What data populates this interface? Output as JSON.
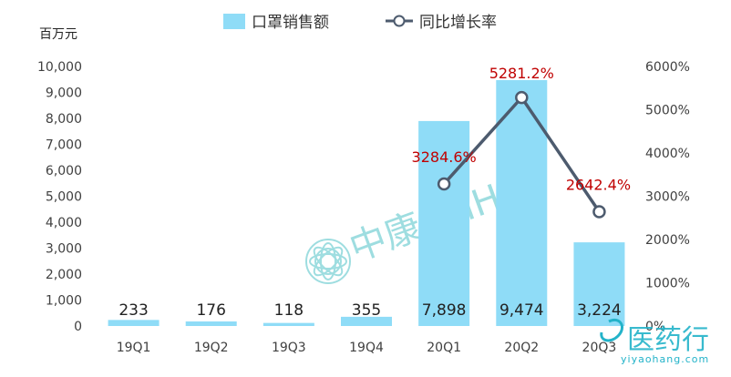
{
  "chart_data": {
    "type": "bar",
    "categories": [
      "19Q1",
      "19Q2",
      "19Q3",
      "19Q4",
      "20Q1",
      "20Q2",
      "20Q3"
    ],
    "series": [
      {
        "name": "口罩销售额",
        "type": "bar",
        "axis": "left",
        "values": [
          233,
          176,
          118,
          355,
          7898,
          9474,
          3224
        ],
        "labels": [
          "233",
          "176",
          "118",
          "355",
          "7,898",
          "9,474",
          "3,224"
        ],
        "color": "#8fdcf7"
      },
      {
        "name": "同比增长率",
        "type": "line",
        "axis": "right",
        "values": [
          null,
          null,
          null,
          null,
          3284.6,
          5281.2,
          2642.4
        ],
        "labels": [
          "",
          "",
          "",
          "",
          "3284.6%",
          "5281.2%",
          "2642.4%"
        ],
        "color": "#4d5b6e"
      }
    ],
    "left_axis": {
      "unit": "百万元",
      "ylim": [
        0,
        10000
      ],
      "ticks": [
        "0",
        "1,000",
        "2,000",
        "3,000",
        "4,000",
        "5,000",
        "6,000",
        "7,000",
        "8,000",
        "9,000",
        "10,000"
      ]
    },
    "right_axis": {
      "ylim": [
        0,
        6000
      ],
      "ticks": [
        "0%",
        "1000%",
        "2000%",
        "3000%",
        "4000%",
        "5000%",
        "6000%"
      ]
    },
    "legend_position": "top-center",
    "label_color": "#c00000"
  },
  "watermarks": {
    "center_text": "中康CMH",
    "corner_text": "医药行",
    "corner_url": "yiyaohang.com"
  }
}
